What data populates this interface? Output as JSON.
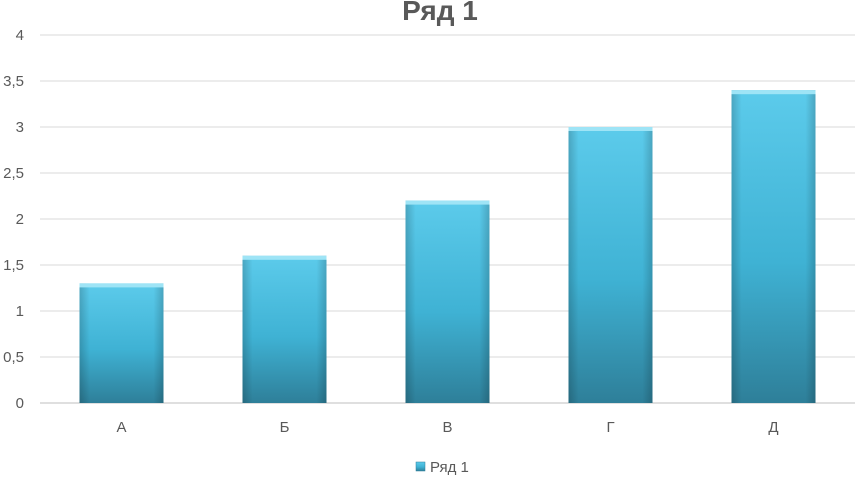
{
  "chart_data": {
    "type": "bar",
    "title": "Ряд 1",
    "categories": [
      "А",
      "Б",
      "В",
      "Г",
      "Д"
    ],
    "series": [
      {
        "name": "Ряд 1",
        "values": [
          1.3,
          1.6,
          2.2,
          3.0,
          3.4
        ]
      }
    ],
    "ylim": [
      0,
      4
    ],
    "yticks": [
      "0",
      "0,5",
      "1",
      "1,5",
      "2",
      "2,5",
      "3",
      "3,5",
      "4"
    ],
    "grid": true,
    "legend": "bottom",
    "colors": {
      "bar_top": "#5ccbeb",
      "bar_mid": "#3fb2d4",
      "bar_bottom": "#2e7f99",
      "bar_cap": "#9ee4f6"
    }
  }
}
